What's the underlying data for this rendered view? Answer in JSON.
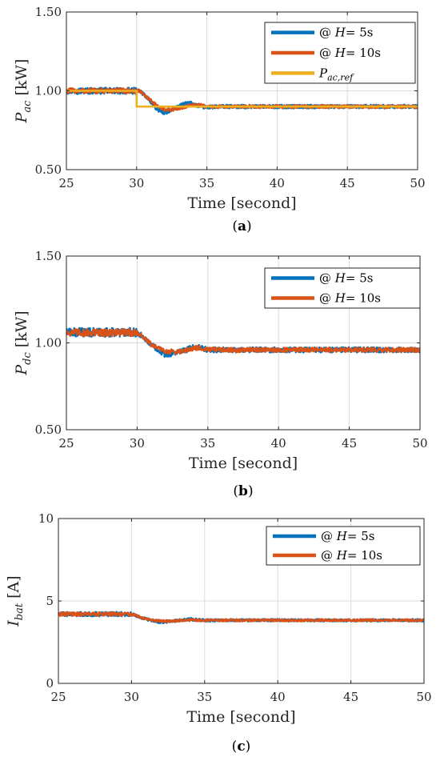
{
  "chart_data": [
    {
      "type": "line",
      "id": "a",
      "caption_letter": "a",
      "caption": "(a)",
      "xlabel": "Time [second]",
      "ylabel_main": "P",
      "ylabel_sub": "ac",
      "ylabel_unit": " [kW]",
      "xlim": [
        25,
        50
      ],
      "ylim": [
        0.5,
        1.5
      ],
      "xticks": [
        25,
        30,
        35,
        40,
        45,
        50
      ],
      "yticks": [
        0.5,
        1.0,
        1.5
      ],
      "ytick_labels": [
        "0.50",
        "1.00",
        "1.50"
      ],
      "grid": true,
      "legend_position": "top-right",
      "series": [
        {
          "name": "@ H= 5s",
          "name_prefix": "@ ",
          "name_var": "H",
          "name_suffix": "= 5s",
          "color": "#0072BD",
          "noise": 0.012,
          "points": [
            [
              25,
              1.0
            ],
            [
              29.9,
              1.0
            ],
            [
              30.2,
              1.0
            ],
            [
              30.6,
              0.97
            ],
            [
              31.0,
              0.93
            ],
            [
              31.5,
              0.88
            ],
            [
              32.0,
              0.86
            ],
            [
              32.5,
              0.88
            ],
            [
              33.0,
              0.9
            ],
            [
              33.5,
              0.92
            ],
            [
              34.0,
              0.92
            ],
            [
              34.5,
              0.9
            ],
            [
              35.0,
              0.895
            ],
            [
              36.0,
              0.9
            ],
            [
              50,
              0.9
            ]
          ]
        },
        {
          "name": "@ H= 10s",
          "name_prefix": "@ ",
          "name_var": "H",
          "name_suffix": "= 10s",
          "color": "#D95319",
          "noise": 0.01,
          "points": [
            [
              25,
              1.0
            ],
            [
              29.9,
              1.0
            ],
            [
              30.2,
              1.0
            ],
            [
              30.6,
              0.97
            ],
            [
              31.0,
              0.94
            ],
            [
              31.5,
              0.9
            ],
            [
              32.0,
              0.88
            ],
            [
              32.5,
              0.88
            ],
            [
              33.0,
              0.89
            ],
            [
              33.5,
              0.9
            ],
            [
              34.0,
              0.91
            ],
            [
              34.5,
              0.91
            ],
            [
              35.0,
              0.9
            ],
            [
              36.0,
              0.9
            ],
            [
              50,
              0.9
            ]
          ]
        },
        {
          "name": "P_{ac,ref}",
          "name_prefix": "",
          "name_var": "P",
          "name_sub": "ac,ref",
          "name_suffix": "",
          "color": "#EDB120",
          "noise": 0,
          "points": [
            [
              25,
              1.0
            ],
            [
              30,
              1.0
            ],
            [
              30,
              0.9
            ],
            [
              50,
              0.9
            ]
          ]
        }
      ]
    },
    {
      "type": "line",
      "id": "b",
      "caption_letter": "b",
      "caption": "(b)",
      "xlabel": "Time [second]",
      "ylabel_main": "P",
      "ylabel_sub": "dc",
      "ylabel_unit": " [kW]",
      "xlim": [
        25,
        50
      ],
      "ylim": [
        0.5,
        1.5
      ],
      "xticks": [
        25,
        30,
        35,
        40,
        45,
        50
      ],
      "yticks": [
        0.5,
        1.0,
        1.5
      ],
      "ytick_labels": [
        "0.50",
        "1.00",
        "1.50"
      ],
      "grid": true,
      "legend_position": "top-right",
      "series": [
        {
          "name": "@ H= 5s",
          "name_prefix": "@ ",
          "name_var": "H",
          "name_suffix": "= 5s",
          "color": "#0072BD",
          "noise": 0.015,
          "points": [
            [
              25,
              1.06
            ],
            [
              29.9,
              1.06
            ],
            [
              30.2,
              1.05
            ],
            [
              30.6,
              1.02
            ],
            [
              31.0,
              0.99
            ],
            [
              31.5,
              0.96
            ],
            [
              32.0,
              0.93
            ],
            [
              32.5,
              0.94
            ],
            [
              33.0,
              0.95
            ],
            [
              33.5,
              0.96
            ],
            [
              34.0,
              0.98
            ],
            [
              34.5,
              0.97
            ],
            [
              35.0,
              0.96
            ],
            [
              36.0,
              0.96
            ],
            [
              50,
              0.96
            ]
          ]
        },
        {
          "name": "@ H= 10s",
          "name_prefix": "@ ",
          "name_var": "H",
          "name_suffix": "= 10s",
          "color": "#D95319",
          "noise": 0.013,
          "points": [
            [
              25,
              1.06
            ],
            [
              29.9,
              1.06
            ],
            [
              30.2,
              1.05
            ],
            [
              30.6,
              1.02
            ],
            [
              31.0,
              0.99
            ],
            [
              31.5,
              0.97
            ],
            [
              32.0,
              0.95
            ],
            [
              32.5,
              0.95
            ],
            [
              33.0,
              0.95
            ],
            [
              33.5,
              0.96
            ],
            [
              34.0,
              0.97
            ],
            [
              34.5,
              0.97
            ],
            [
              35.0,
              0.96
            ],
            [
              36.0,
              0.96
            ],
            [
              50,
              0.96
            ]
          ]
        }
      ]
    },
    {
      "type": "line",
      "id": "c",
      "caption_letter": "c",
      "caption": "(c)",
      "xlabel": "Time [second]",
      "ylabel_main": "I",
      "ylabel_sub": "bat",
      "ylabel_unit": " [A]",
      "xlim": [
        25,
        50
      ],
      "ylim": [
        0,
        10
      ],
      "xticks": [
        25,
        30,
        35,
        40,
        45,
        50
      ],
      "yticks": [
        0,
        5,
        10
      ],
      "ytick_labels": [
        "0",
        "5",
        "10"
      ],
      "grid": true,
      "legend_position": "top-right",
      "series": [
        {
          "name": "@ H= 5s",
          "name_prefix": "@ ",
          "name_var": "H",
          "name_suffix": "= 5s",
          "color": "#0072BD",
          "noise": 0.08,
          "points": [
            [
              25,
              4.2
            ],
            [
              29.9,
              4.2
            ],
            [
              30.2,
              4.15
            ],
            [
              30.6,
              4.0
            ],
            [
              31.0,
              3.9
            ],
            [
              31.5,
              3.8
            ],
            [
              32.0,
              3.7
            ],
            [
              32.5,
              3.75
            ],
            [
              33.0,
              3.8
            ],
            [
              33.5,
              3.85
            ],
            [
              34.0,
              3.9
            ],
            [
              34.5,
              3.85
            ],
            [
              35.0,
              3.83
            ],
            [
              36.0,
              3.83
            ],
            [
              50,
              3.83
            ]
          ]
        },
        {
          "name": "@ H= 10s",
          "name_prefix": "@ ",
          "name_var": "H",
          "name_suffix": "= 10s",
          "color": "#D95319",
          "noise": 0.07,
          "points": [
            [
              25,
              4.2
            ],
            [
              29.9,
              4.2
            ],
            [
              30.2,
              4.15
            ],
            [
              30.6,
              4.02
            ],
            [
              31.0,
              3.92
            ],
            [
              31.5,
              3.83
            ],
            [
              32.0,
              3.78
            ],
            [
              32.5,
              3.78
            ],
            [
              33.0,
              3.8
            ],
            [
              33.5,
              3.82
            ],
            [
              34.0,
              3.84
            ],
            [
              34.5,
              3.84
            ],
            [
              35.0,
              3.83
            ],
            [
              36.0,
              3.83
            ],
            [
              50,
              3.83
            ]
          ]
        }
      ]
    }
  ]
}
